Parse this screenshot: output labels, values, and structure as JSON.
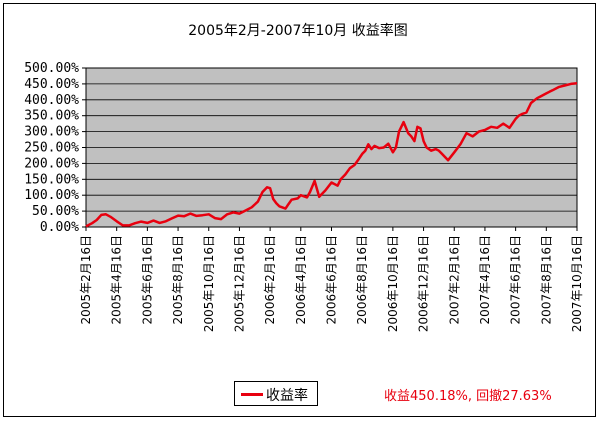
{
  "colors": {
    "series": "#e8000f",
    "plot_bg": "#c0c0c0",
    "grid": "#000000",
    "summary": "#e8000f"
  },
  "summary_text": "收益450.18%, 回撤27.63%",
  "chart_data": {
    "type": "line",
    "title": "2005年2月-2007年10月 收益率图",
    "xlabel": "",
    "ylabel": "",
    "ylim": [
      0,
      500
    ],
    "yticks": [
      "0.00%",
      "50.00%",
      "100.00%",
      "150.00%",
      "200.00%",
      "250.00%",
      "300.00%",
      "350.00%",
      "400.00%",
      "450.00%",
      "500.00%"
    ],
    "categories": [
      "2005年2月16日",
      "2005年4月16日",
      "2005年6月16日",
      "2005年8月16日",
      "2005年10月16日",
      "2005年12月16日",
      "2006年2月16日",
      "2006年4月16日",
      "2006年6月16日",
      "2006年8月16日",
      "2006年10月16日",
      "2006年12月16日",
      "2007年2月16日",
      "2007年4月16日",
      "2007年6月16日",
      "2007年8月16日",
      "2007年10月16日"
    ],
    "grid": true,
    "legend": "bottom-center",
    "series": [
      {
        "name": "收益率",
        "x": [
          0,
          0.2,
          0.35,
          0.5,
          0.65,
          0.8,
          1,
          1.2,
          1.4,
          1.6,
          1.8,
          2,
          2.2,
          2.4,
          2.6,
          2.8,
          3,
          3.2,
          3.4,
          3.6,
          3.8,
          4,
          4.2,
          4.4,
          4.6,
          4.8,
          5,
          5.2,
          5.4,
          5.6,
          5.75,
          5.9,
          6,
          6.1,
          6.2,
          6.3,
          6.5,
          6.6,
          6.7,
          6.9,
          7,
          7.2,
          7.3,
          7.45,
          7.6,
          7.8,
          8,
          8.2,
          8.3,
          8.45,
          8.6,
          8.75,
          8.9,
          9,
          9.1,
          9.2,
          9.3,
          9.4,
          9.55,
          9.7,
          9.85,
          10,
          10.1,
          10.2,
          10.35,
          10.5,
          10.6,
          10.7,
          10.8,
          10.9,
          11,
          11.1,
          11.25,
          11.4,
          11.5,
          11.6,
          11.8,
          12,
          12.2,
          12.4,
          12.6,
          12.8,
          13,
          13.1,
          13.2,
          13.4,
          13.6,
          13.8,
          14,
          14.1,
          14.2,
          14.35,
          14.5,
          14.7,
          14.8,
          15,
          15.1,
          15.2,
          15.4,
          15.6,
          15.8,
          16
        ],
        "values": [
          2,
          12,
          22,
          38,
          40,
          32,
          18,
          5,
          5,
          12,
          17,
          13,
          20,
          13,
          18,
          27,
          36,
          34,
          42,
          35,
          37,
          40,
          28,
          25,
          40,
          46,
          42,
          52,
          62,
          80,
          110,
          125,
          122,
          88,
          75,
          65,
          58,
          72,
          86,
          90,
          100,
          93,
          110,
          145,
          95,
          115,
          140,
          130,
          150,
          165,
          185,
          195,
          215,
          230,
          240,
          260,
          245,
          255,
          248,
          250,
          262,
          235,
          250,
          300,
          330,
          295,
          285,
          270,
          315,
          310,
          270,
          250,
          240,
          245,
          240,
          230,
          210,
          235,
          260,
          295,
          285,
          300,
          305,
          310,
          315,
          312,
          325,
          312,
          340,
          350,
          355,
          360,
          390,
          405,
          410,
          420,
          425,
          430,
          440,
          445,
          450,
          452
        ]
      }
    ]
  }
}
